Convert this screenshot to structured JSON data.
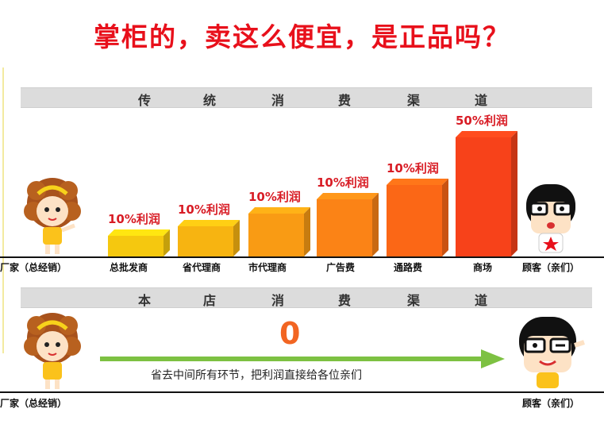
{
  "title": "掌柜的，卖这么便宜，是正品吗？",
  "traditional": {
    "banner_chars": [
      "传",
      "统",
      "消",
      "费",
      "渠",
      "道"
    ],
    "manufacturer": "厂家（总经销）",
    "customer": "顾客（亲们）",
    "stages": [
      {
        "label": "总批发商",
        "profit": "10%利润"
      },
      {
        "label": "省代理商",
        "profit": "10%利润"
      },
      {
        "label": "市代理商",
        "profit": "10%利润"
      },
      {
        "label": "广告费",
        "profit": "10%利润"
      },
      {
        "label": "通路费",
        "profit": "10%利润"
      },
      {
        "label": "商场",
        "profit": "50%利润"
      }
    ],
    "colors": [
      "#f5c80f",
      "#f7b411",
      "#f99b14",
      "#fb8316",
      "#fb6716",
      "#f7421a"
    ]
  },
  "store": {
    "banner_chars": [
      "本",
      "店",
      "消",
      "费",
      "渠",
      "道"
    ],
    "manufacturer": "厂家（总经销）",
    "customer": "顾客（亲们）",
    "zero": "0",
    "arrow_text": "省去中间所有环节，把利润直接给各位亲们",
    "arrow_color": "#7dc142"
  }
}
